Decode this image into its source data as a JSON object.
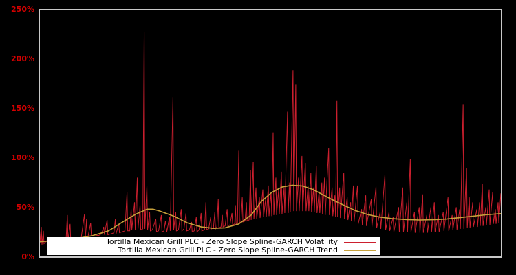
{
  "window": {
    "background": "#000000"
  },
  "legend": {
    "items": [
      {
        "label": "Tortilla Mexican Grill PLC - Zero Slope Spline-GARCH Volatility",
        "color": "#cc1f2e"
      },
      {
        "label": "Tortilla Mexican Grill PLC - Zero Slope Spline-GARCH Trend",
        "color": "#c7a13b"
      }
    ]
  },
  "chart_data": {
    "type": "line",
    "title": "",
    "xlabel": "",
    "ylabel": "",
    "ylim": [
      0,
      250
    ],
    "grid": false,
    "x_tick_labels_visible": false,
    "legend_position": "bottom-left white box, right-aligned entries",
    "background": "#000000",
    "plot_border_color": "#c8c8c8",
    "axis_label_color": "#d40000",
    "yticks": [
      {
        "label": "0%",
        "value": 0
      },
      {
        "label": "50%",
        "value": 50
      },
      {
        "label": "100%",
        "value": 100
      },
      {
        "label": "150%",
        "value": 150
      },
      {
        "label": "200%",
        "value": 200
      },
      {
        "label": "250%",
        "value": 250
      }
    ],
    "x_unit": "plot_px_0_672 (time, no axis labels shown)",
    "y_unit": "percent_annualized_volatility",
    "series": [
      {
        "name": "Tortilla Mexican Grill PLC - Zero Slope Spline-GARCH Volatility",
        "color": "#cc1f2e",
        "width": 1,
        "points": [
          [
            0,
            14
          ],
          [
            2,
            30
          ],
          [
            3,
            12
          ],
          [
            5,
            26
          ],
          [
            6,
            13
          ],
          [
            10,
            16
          ],
          [
            14,
            13
          ],
          [
            18,
            15
          ],
          [
            22,
            13
          ],
          [
            26,
            16
          ],
          [
            30,
            14
          ],
          [
            34,
            17
          ],
          [
            38,
            15
          ],
          [
            40,
            42
          ],
          [
            41,
            16
          ],
          [
            44,
            33
          ],
          [
            45,
            15
          ],
          [
            50,
            17
          ],
          [
            55,
            15
          ],
          [
            60,
            18
          ],
          [
            65,
            43
          ],
          [
            66,
            17
          ],
          [
            68,
            38
          ],
          [
            69,
            16
          ],
          [
            74,
            34
          ],
          [
            75,
            21
          ],
          [
            80,
            22
          ],
          [
            85,
            21
          ],
          [
            90,
            23
          ],
          [
            93,
            30
          ],
          [
            94,
            22
          ],
          [
            98,
            37
          ],
          [
            99,
            22
          ],
          [
            104,
            23
          ],
          [
            108,
            24
          ],
          [
            110,
            38
          ],
          [
            111,
            23
          ],
          [
            115,
            33
          ],
          [
            116,
            24
          ],
          [
            120,
            25
          ],
          [
            124,
            26
          ],
          [
            127,
            65
          ],
          [
            128,
            26
          ],
          [
            131,
            26
          ],
          [
            133,
            48
          ],
          [
            134,
            27
          ],
          [
            138,
            55
          ],
          [
            139,
            27
          ],
          [
            142,
            80
          ],
          [
            143,
            28
          ],
          [
            146,
            52
          ],
          [
            147,
            27
          ],
          [
            150,
            28
          ],
          [
            152,
            228
          ],
          [
            153,
            28
          ],
          [
            156,
            72
          ],
          [
            157,
            27
          ],
          [
            160,
            45
          ],
          [
            161,
            26
          ],
          [
            164,
            27
          ],
          [
            169,
            38
          ],
          [
            170,
            25
          ],
          [
            173,
            26
          ],
          [
            177,
            42
          ],
          [
            178,
            25
          ],
          [
            181,
            26
          ],
          [
            183,
            36
          ],
          [
            185,
            25
          ],
          [
            189,
            40
          ],
          [
            190,
            26
          ],
          [
            194,
            162
          ],
          [
            195,
            27
          ],
          [
            198,
            45
          ],
          [
            199,
            26
          ],
          [
            202,
            27
          ],
          [
            206,
            48
          ],
          [
            207,
            26
          ],
          [
            210,
            28
          ],
          [
            213,
            44
          ],
          [
            214,
            26
          ],
          [
            218,
            27
          ],
          [
            221,
            35
          ],
          [
            222,
            25
          ],
          [
            225,
            26
          ],
          [
            228,
            40
          ],
          [
            229,
            25
          ],
          [
            232,
            27
          ],
          [
            235,
            44
          ],
          [
            236,
            26
          ],
          [
            240,
            27
          ],
          [
            242,
            55
          ],
          [
            243,
            27
          ],
          [
            246,
            28
          ],
          [
            249,
            40
          ],
          [
            250,
            28
          ],
          [
            253,
            29
          ],
          [
            255,
            45
          ],
          [
            256,
            28
          ],
          [
            258,
            30
          ],
          [
            260,
            58
          ],
          [
            261,
            29
          ],
          [
            264,
            30
          ],
          [
            266,
            42
          ],
          [
            267,
            30
          ],
          [
            270,
            31
          ],
          [
            273,
            48
          ],
          [
            274,
            31
          ],
          [
            277,
            32
          ],
          [
            280,
            44
          ],
          [
            281,
            32
          ],
          [
            284,
            33
          ],
          [
            285,
            52
          ],
          [
            286,
            33
          ],
          [
            288,
            34
          ],
          [
            290,
            108
          ],
          [
            291,
            34
          ],
          [
            293,
            35
          ],
          [
            295,
            60
          ],
          [
            296,
            35
          ],
          [
            299,
            36
          ],
          [
            301,
            55
          ],
          [
            302,
            36
          ],
          [
            305,
            37
          ],
          [
            307,
            88
          ],
          [
            308,
            37
          ],
          [
            311,
            96
          ],
          [
            312,
            38
          ],
          [
            315,
            70
          ],
          [
            316,
            38
          ],
          [
            320,
            60
          ],
          [
            321,
            39
          ],
          [
            325,
            68
          ],
          [
            326,
            40
          ],
          [
            329,
            58
          ],
          [
            330,
            40
          ],
          [
            333,
            72
          ],
          [
            334,
            41
          ],
          [
            337,
            65
          ],
          [
            338,
            41
          ],
          [
            340,
            126
          ],
          [
            341,
            42
          ],
          [
            344,
            80
          ],
          [
            345,
            42
          ],
          [
            348,
            68
          ],
          [
            349,
            43
          ],
          [
            352,
            86
          ],
          [
            353,
            43
          ],
          [
            356,
            70
          ],
          [
            357,
            44
          ],
          [
            361,
            147
          ],
          [
            362,
            44
          ],
          [
            364,
            75
          ],
          [
            365,
            45
          ],
          [
            369,
            189
          ],
          [
            370,
            46
          ],
          [
            373,
            175
          ],
          [
            374,
            46
          ],
          [
            377,
            80
          ],
          [
            378,
            46
          ],
          [
            382,
            102
          ],
          [
            383,
            46
          ],
          [
            387,
            95
          ],
          [
            388,
            46
          ],
          [
            391,
            72
          ],
          [
            392,
            46
          ],
          [
            395,
            85
          ],
          [
            396,
            45
          ],
          [
            399,
            70
          ],
          [
            400,
            45
          ],
          [
            403,
            92
          ],
          [
            404,
            44
          ],
          [
            407,
            66
          ],
          [
            408,
            44
          ],
          [
            411,
            75
          ],
          [
            412,
            43
          ],
          [
            415,
            80
          ],
          [
            416,
            42
          ],
          [
            421,
            110
          ],
          [
            422,
            42
          ],
          [
            426,
            70
          ],
          [
            427,
            41
          ],
          [
            430,
            62
          ],
          [
            431,
            40
          ],
          [
            433,
            158
          ],
          [
            434,
            40
          ],
          [
            437,
            70
          ],
          [
            438,
            39
          ],
          [
            443,
            85
          ],
          [
            444,
            38
          ],
          [
            448,
            60
          ],
          [
            449,
            37
          ],
          [
            453,
            55
          ],
          [
            454,
            36
          ],
          [
            457,
            72
          ],
          [
            458,
            35
          ],
          [
            463,
            72
          ],
          [
            464,
            33
          ],
          [
            469,
            48
          ],
          [
            470,
            32
          ],
          [
            475,
            62
          ],
          [
            476,
            31
          ],
          [
            483,
            58
          ],
          [
            484,
            30
          ],
          [
            490,
            71
          ],
          [
            491,
            29
          ],
          [
            496,
            45
          ],
          [
            497,
            28
          ],
          [
            503,
            83
          ],
          [
            504,
            27
          ],
          [
            509,
            45
          ],
          [
            510,
            26
          ],
          [
            515,
            40
          ],
          [
            516,
            25
          ],
          [
            523,
            50
          ],
          [
            524,
            25
          ],
          [
            529,
            70
          ],
          [
            530,
            25
          ],
          [
            535,
            55
          ],
          [
            536,
            25
          ],
          [
            540,
            99
          ],
          [
            541,
            25
          ],
          [
            546,
            45
          ],
          [
            547,
            24
          ],
          [
            553,
            50
          ],
          [
            554,
            24
          ],
          [
            558,
            63
          ],
          [
            559,
            24
          ],
          [
            564,
            42
          ],
          [
            565,
            24
          ],
          [
            570,
            50
          ],
          [
            571,
            25
          ],
          [
            575,
            55
          ],
          [
            576,
            25
          ],
          [
            581,
            42
          ],
          [
            582,
            25
          ],
          [
            588,
            45
          ],
          [
            589,
            26
          ],
          [
            595,
            60
          ],
          [
            596,
            26
          ],
          [
            601,
            42
          ],
          [
            602,
            27
          ],
          [
            607,
            50
          ],
          [
            608,
            27
          ],
          [
            612,
            48
          ],
          [
            613,
            28
          ],
          [
            617,
            154
          ],
          [
            618,
            28
          ],
          [
            622,
            90
          ],
          [
            623,
            29
          ],
          [
            626,
            60
          ],
          [
            627,
            29
          ],
          [
            631,
            55
          ],
          [
            632,
            30
          ],
          [
            637,
            48
          ],
          [
            638,
            30
          ],
          [
            641,
            55
          ],
          [
            642,
            31
          ],
          [
            645,
            74
          ],
          [
            646,
            31
          ],
          [
            650,
            50
          ],
          [
            651,
            32
          ],
          [
            655,
            68
          ],
          [
            656,
            32
          ],
          [
            660,
            65
          ],
          [
            661,
            33
          ],
          [
            664,
            48
          ],
          [
            665,
            33
          ],
          [
            668,
            55
          ],
          [
            669,
            34
          ],
          [
            672,
            64
          ]
        ]
      },
      {
        "name": "Tortilla Mexican Grill PLC - Zero Slope Spline-GARCH Trend",
        "color": "#c7a13b",
        "width": 1.6,
        "points": [
          [
            0,
            15
          ],
          [
            20,
            16
          ],
          [
            40,
            17.5
          ],
          [
            60,
            19
          ],
          [
            76,
            21
          ],
          [
            100,
            26
          ],
          [
            123,
            36
          ],
          [
            140,
            43
          ],
          [
            150,
            46
          ],
          [
            156,
            48
          ],
          [
            165,
            48
          ],
          [
            175,
            46
          ],
          [
            195,
            41
          ],
          [
            215,
            34
          ],
          [
            235,
            30
          ],
          [
            253,
            28.5
          ],
          [
            270,
            29
          ],
          [
            290,
            33
          ],
          [
            308,
            42
          ],
          [
            323,
            56
          ],
          [
            338,
            65
          ],
          [
            353,
            70.5
          ],
          [
            368,
            72.3
          ],
          [
            383,
            71.5
          ],
          [
            398,
            68
          ],
          [
            413,
            62.5
          ],
          [
            428,
            57
          ],
          [
            443,
            52
          ],
          [
            460,
            46.5
          ],
          [
            478,
            42.5
          ],
          [
            495,
            40
          ],
          [
            513,
            38.5
          ],
          [
            533,
            37.5
          ],
          [
            553,
            37
          ],
          [
            573,
            37.3
          ],
          [
            593,
            38
          ],
          [
            613,
            39.5
          ],
          [
            633,
            41
          ],
          [
            653,
            42.5
          ],
          [
            672,
            43.5
          ]
        ]
      }
    ]
  }
}
